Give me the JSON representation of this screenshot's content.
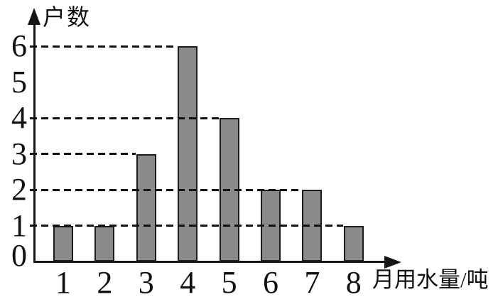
{
  "chart_data": {
    "type": "bar",
    "title": "",
    "ylabel": "户数",
    "xlabel": "月用水量/吨",
    "categories": [
      "1",
      "2",
      "3",
      "4",
      "5",
      "6",
      "7",
      "8"
    ],
    "values": [
      1,
      1,
      3,
      6,
      4,
      2,
      2,
      1
    ],
    "y_ticks": [
      "0",
      "1",
      "2",
      "3",
      "4",
      "5",
      "6"
    ],
    "ylim": [
      0,
      6.8
    ],
    "legend": "none",
    "grid": "horizontal dashed lines only at levels matching bar tops",
    "gridlines": [
      {
        "level": 1,
        "ends_at_category": "8"
      },
      {
        "level": 2,
        "ends_at_category": "7"
      },
      {
        "level": 3,
        "ends_at_category": "3"
      },
      {
        "level": 4,
        "ends_at_category": "5"
      },
      {
        "level": 6,
        "ends_at_category": "4"
      }
    ],
    "colors": {
      "bar_fill": "#8a8a8a",
      "bar_border": "#1b1b1b",
      "axis": "#151515",
      "gridline": "#111111",
      "text": "#111111",
      "background": "#ffffff"
    }
  }
}
